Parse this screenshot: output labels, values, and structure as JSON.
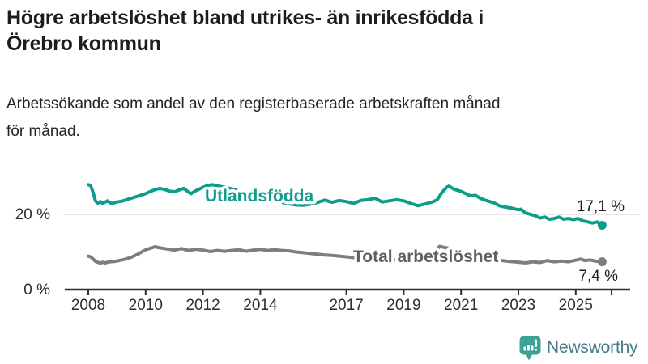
{
  "header": {
    "title_line1": "Högre arbetslöshet bland utrikes- än inrikesfödda i",
    "title_line2": "Örebro kommun",
    "subtitle_line1": "Arbetssökande som andel av den registerbaserade arbetskraften månad",
    "subtitle_line2": "för månad."
  },
  "footer": {
    "brand": "Newsworthy"
  },
  "colors": {
    "series_foreign_born": "#0e9c8b",
    "series_total_line": "#7e7e82",
    "series_total_label": "#5f5f68",
    "axis": "#2e2e2e",
    "grid": "#dedede",
    "annotation_text": "#1d1d1d",
    "logo_icon": "#3ba294",
    "logo_text": "#45798c"
  },
  "chart_data": {
    "type": "line",
    "title": "Högre arbetslöshet bland utrikes- än inrikesfödda i Örebro kommun",
    "subtitle": "Arbetssökande som andel av den registerbaserade arbetskraften månad för månad.",
    "unit": "%",
    "x_range": [
      2008,
      2026.4
    ],
    "y_range": [
      0,
      30
    ],
    "grid": "single-horizontal-line-at-20",
    "legend_position": "inline-labels-on-lines",
    "x_ticks": [
      {
        "year": 2008,
        "label": "2008"
      },
      {
        "year": 2010,
        "label": "2010"
      },
      {
        "year": 2012,
        "label": "2012"
      },
      {
        "year": 2014,
        "label": "2014"
      },
      {
        "year": 2017,
        "label": "2017"
      },
      {
        "year": 2019,
        "label": "2019"
      },
      {
        "year": 2021,
        "label": "2021"
      },
      {
        "year": 2023,
        "label": "2023"
      },
      {
        "year": 2025,
        "label": "2025"
      }
    ],
    "end_tick_year": 2026.25,
    "y_ticks": [
      {
        "value": 0,
        "label": "0 %"
      },
      {
        "value": 20,
        "label": "20 %"
      }
    ],
    "series": [
      {
        "name": "Total arbetslöshet",
        "color": "#7e7e82",
        "label_color": "#5f5f68",
        "end_label": "7,4 %",
        "end_value": 7.4,
        "points": [
          [
            2008.0,
            8.9
          ],
          [
            2008.08,
            8.7
          ],
          [
            2008.17,
            8.1
          ],
          [
            2008.25,
            7.5
          ],
          [
            2008.42,
            7.0
          ],
          [
            2008.5,
            7.3
          ],
          [
            2008.58,
            7.1
          ],
          [
            2008.75,
            7.4
          ],
          [
            2008.92,
            7.5
          ],
          [
            2009.0,
            7.6
          ],
          [
            2009.25,
            8.0
          ],
          [
            2009.5,
            8.6
          ],
          [
            2009.75,
            9.5
          ],
          [
            2010.0,
            10.6
          ],
          [
            2010.17,
            11.0
          ],
          [
            2010.33,
            11.4
          ],
          [
            2010.5,
            11.1
          ],
          [
            2010.75,
            10.8
          ],
          [
            2011.0,
            10.5
          ],
          [
            2011.25,
            10.9
          ],
          [
            2011.5,
            10.4
          ],
          [
            2011.75,
            10.7
          ],
          [
            2012.0,
            10.5
          ],
          [
            2012.25,
            10.1
          ],
          [
            2012.5,
            10.4
          ],
          [
            2012.75,
            10.2
          ],
          [
            2013.0,
            10.4
          ],
          [
            2013.25,
            10.6
          ],
          [
            2013.5,
            10.2
          ],
          [
            2013.75,
            10.5
          ],
          [
            2014.0,
            10.7
          ],
          [
            2014.25,
            10.4
          ],
          [
            2014.5,
            10.6
          ],
          [
            2014.75,
            10.4
          ],
          [
            2015.0,
            10.3
          ],
          [
            2015.25,
            10.0
          ],
          [
            2015.5,
            9.8
          ],
          [
            2015.75,
            9.6
          ],
          [
            2016.0,
            9.4
          ],
          [
            2016.25,
            9.2
          ],
          [
            2016.5,
            9.1
          ],
          [
            2016.75,
            8.9
          ],
          [
            2017.0,
            8.7
          ],
          [
            2017.25,
            8.5
          ],
          [
            2017.5,
            8.3
          ],
          [
            2017.75,
            8.2
          ],
          [
            2018.0,
            8.1
          ],
          [
            2018.33,
            8.0
          ],
          [
            2018.67,
            7.9
          ],
          [
            2019.0,
            7.9
          ],
          [
            2019.33,
            8.0
          ],
          [
            2019.67,
            8.1
          ],
          [
            2020.0,
            8.8
          ],
          [
            2020.25,
            11.5
          ],
          [
            2020.42,
            11.2
          ],
          [
            2020.58,
            11.0
          ],
          [
            2020.83,
            10.4
          ],
          [
            2021.0,
            10.0
          ],
          [
            2021.33,
            9.4
          ],
          [
            2021.67,
            8.8
          ],
          [
            2022.0,
            8.2
          ],
          [
            2022.33,
            7.8
          ],
          [
            2022.67,
            7.5
          ],
          [
            2023.0,
            7.3
          ],
          [
            2023.25,
            7.1
          ],
          [
            2023.5,
            7.4
          ],
          [
            2023.75,
            7.2
          ],
          [
            2024.0,
            7.7
          ],
          [
            2024.25,
            7.4
          ],
          [
            2024.5,
            7.6
          ],
          [
            2024.75,
            7.4
          ],
          [
            2025.0,
            7.8
          ],
          [
            2025.17,
            8.1
          ],
          [
            2025.33,
            7.7
          ],
          [
            2025.5,
            7.9
          ],
          [
            2025.67,
            7.6
          ],
          [
            2025.92,
            7.4
          ]
        ]
      },
      {
        "name": "Utlandsfödda",
        "color": "#0e9c8b",
        "label_color": "#0e9c8b",
        "end_label": "17,1 %",
        "end_value": 17.1,
        "points": [
          [
            2008.0,
            27.9
          ],
          [
            2008.08,
            27.7
          ],
          [
            2008.17,
            25.8
          ],
          [
            2008.25,
            23.6
          ],
          [
            2008.33,
            23.0
          ],
          [
            2008.42,
            23.4
          ],
          [
            2008.5,
            22.9
          ],
          [
            2008.58,
            23.2
          ],
          [
            2008.67,
            23.6
          ],
          [
            2008.75,
            23.1
          ],
          [
            2008.83,
            22.9
          ],
          [
            2008.92,
            23.1
          ],
          [
            2009.0,
            23.3
          ],
          [
            2009.17,
            23.5
          ],
          [
            2009.33,
            23.9
          ],
          [
            2009.5,
            24.3
          ],
          [
            2009.67,
            24.7
          ],
          [
            2009.83,
            25.1
          ],
          [
            2010.0,
            25.5
          ],
          [
            2010.17,
            26.1
          ],
          [
            2010.33,
            26.6
          ],
          [
            2010.5,
            26.9
          ],
          [
            2010.67,
            26.6
          ],
          [
            2010.83,
            26.2
          ],
          [
            2011.0,
            26.0
          ],
          [
            2011.17,
            26.5
          ],
          [
            2011.33,
            26.9
          ],
          [
            2011.5,
            25.9
          ],
          [
            2011.58,
            25.5
          ],
          [
            2011.75,
            26.3
          ],
          [
            2011.92,
            26.9
          ],
          [
            2012.0,
            27.2
          ],
          [
            2012.17,
            27.7
          ],
          [
            2012.33,
            27.9
          ],
          [
            2012.5,
            27.6
          ],
          [
            2012.75,
            27.2
          ],
          [
            2013.0,
            26.8
          ],
          [
            2013.25,
            26.2
          ],
          [
            2013.5,
            25.6
          ],
          [
            2013.75,
            25.0
          ],
          [
            2014.0,
            24.6
          ],
          [
            2014.25,
            24.1
          ],
          [
            2014.5,
            23.7
          ],
          [
            2014.75,
            23.2
          ],
          [
            2015.0,
            22.8
          ],
          [
            2015.25,
            22.5
          ],
          [
            2015.5,
            22.4
          ],
          [
            2015.75,
            22.7
          ],
          [
            2016.0,
            23.2
          ],
          [
            2016.25,
            23.8
          ],
          [
            2016.5,
            23.2
          ],
          [
            2016.75,
            23.7
          ],
          [
            2017.0,
            23.4
          ],
          [
            2017.25,
            22.9
          ],
          [
            2017.5,
            23.7
          ],
          [
            2017.75,
            23.9
          ],
          [
            2018.0,
            24.3
          ],
          [
            2018.25,
            23.3
          ],
          [
            2018.5,
            23.6
          ],
          [
            2018.75,
            23.9
          ],
          [
            2019.0,
            23.6
          ],
          [
            2019.25,
            22.9
          ],
          [
            2019.5,
            22.3
          ],
          [
            2019.75,
            22.8
          ],
          [
            2020.0,
            23.3
          ],
          [
            2020.17,
            23.9
          ],
          [
            2020.33,
            25.8
          ],
          [
            2020.5,
            27.2
          ],
          [
            2020.58,
            27.5
          ],
          [
            2020.75,
            26.7
          ],
          [
            2020.92,
            26.3
          ],
          [
            2021.0,
            26.1
          ],
          [
            2021.17,
            25.5
          ],
          [
            2021.33,
            24.9
          ],
          [
            2021.5,
            25.1
          ],
          [
            2021.67,
            24.3
          ],
          [
            2021.83,
            23.8
          ],
          [
            2022.0,
            23.4
          ],
          [
            2022.17,
            23.0
          ],
          [
            2022.33,
            22.3
          ],
          [
            2022.5,
            22.0
          ],
          [
            2022.75,
            21.7
          ],
          [
            2023.0,
            21.2
          ],
          [
            2023.08,
            21.4
          ],
          [
            2023.25,
            20.4
          ],
          [
            2023.42,
            20.0
          ],
          [
            2023.58,
            19.7
          ],
          [
            2023.75,
            19.0
          ],
          [
            2023.92,
            19.3
          ],
          [
            2024.08,
            18.7
          ],
          [
            2024.25,
            18.9
          ],
          [
            2024.42,
            19.3
          ],
          [
            2024.58,
            18.7
          ],
          [
            2024.75,
            18.9
          ],
          [
            2024.92,
            18.6
          ],
          [
            2025.08,
            18.9
          ],
          [
            2025.25,
            18.3
          ],
          [
            2025.42,
            18.0
          ],
          [
            2025.58,
            17.7
          ],
          [
            2025.75,
            18.0
          ],
          [
            2025.92,
            17.1
          ]
        ]
      }
    ]
  }
}
